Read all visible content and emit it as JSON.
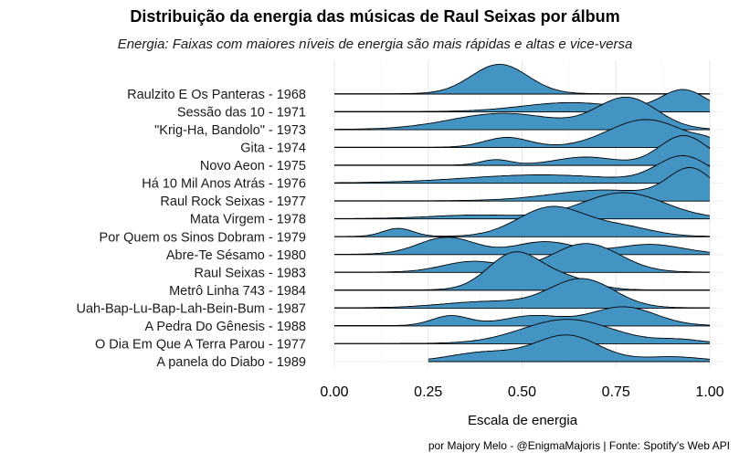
{
  "chart_data": {
    "type": "ridgeline",
    "title": "Distribuição da energia das músicas de Raul Seixas por álbum",
    "subtitle": "Energia: Faixas com maiores níveis de energia são mais rápidas e altas e vice-versa",
    "xlabel": "Escala de energia",
    "xlim": [
      0,
      1
    ],
    "x_ticks": [
      "0.00",
      "0.25",
      "0.50",
      "0.75",
      "1.00"
    ],
    "x_tick_values": [
      0,
      0.25,
      0.5,
      0.75,
      1
    ],
    "grid": true,
    "fill_color": "#4393C3",
    "series": [
      {
        "name": "Raulzito E Os Panteras - 1968",
        "peaks": [
          {
            "mu": 0.44,
            "sd": 0.075,
            "h": 1.65
          }
        ],
        "range": [
          0.0,
          1.0
        ]
      },
      {
        "name": "Sessão das 10 - 1971",
        "peaks": [
          {
            "mu": 0.63,
            "sd": 0.13,
            "h": 0.5
          },
          {
            "mu": 0.93,
            "sd": 0.06,
            "h": 1.2
          }
        ],
        "range": [
          0.0,
          1.0
        ]
      },
      {
        "name": "\"Krig-Ha, Bandolo\" - 1973",
        "peaks": [
          {
            "mu": 0.45,
            "sd": 0.14,
            "h": 0.9
          },
          {
            "mu": 0.78,
            "sd": 0.08,
            "h": 1.75
          }
        ],
        "range": [
          0.0,
          1.0
        ]
      },
      {
        "name": "Gita - 1974",
        "peaks": [
          {
            "mu": 0.46,
            "sd": 0.06,
            "h": 0.55
          },
          {
            "mu": 0.83,
            "sd": 0.1,
            "h": 1.55
          },
          {
            "mu": 0.99,
            "sd": 0.03,
            "h": 0.2
          }
        ],
        "range": [
          0.0,
          1.0
        ]
      },
      {
        "name": "Novo Aeon - 1975",
        "peaks": [
          {
            "mu": 0.43,
            "sd": 0.04,
            "h": 0.3
          },
          {
            "mu": 0.67,
            "sd": 0.08,
            "h": 0.45
          },
          {
            "mu": 0.93,
            "sd": 0.065,
            "h": 1.65
          }
        ],
        "range": [
          0.0,
          1.0
        ]
      },
      {
        "name": "Há 10 Mil Anos Atrás - 1976",
        "peaks": [
          {
            "mu": 0.55,
            "sd": 0.2,
            "h": 0.45
          },
          {
            "mu": 0.93,
            "sd": 0.07,
            "h": 1.45
          }
        ],
        "range": [
          0.0,
          1.0
        ]
      },
      {
        "name": "Raul Rock Seixas - 1977",
        "peaks": [
          {
            "mu": 0.72,
            "sd": 0.14,
            "h": 0.6
          },
          {
            "mu": 0.95,
            "sd": 0.06,
            "h": 1.7
          }
        ],
        "range": [
          0.0,
          1.0
        ]
      },
      {
        "name": "Mata Virgem - 1978",
        "peaks": [
          {
            "mu": 0.38,
            "sd": 0.12,
            "h": 0.2
          },
          {
            "mu": 0.77,
            "sd": 0.11,
            "h": 1.45
          }
        ],
        "range": [
          0.0,
          1.0
        ]
      },
      {
        "name": "Por Quem os Sinos Dobram - 1979",
        "peaks": [
          {
            "mu": 0.17,
            "sd": 0.04,
            "h": 0.45
          },
          {
            "mu": 0.58,
            "sd": 0.09,
            "h": 1.65
          },
          {
            "mu": 0.77,
            "sd": 0.08,
            "h": 0.5
          }
        ],
        "range": [
          0.0,
          1.0
        ]
      },
      {
        "name": "Abre-Te Sésamo - 1980",
        "peaks": [
          {
            "mu": 0.3,
            "sd": 0.075,
            "h": 0.95
          },
          {
            "mu": 0.56,
            "sd": 0.08,
            "h": 0.7
          },
          {
            "mu": 0.84,
            "sd": 0.09,
            "h": 0.55
          }
        ],
        "range": [
          0.0,
          1.0
        ]
      },
      {
        "name": "Raul Seixas - 1983",
        "peaks": [
          {
            "mu": 0.37,
            "sd": 0.08,
            "h": 0.6
          },
          {
            "mu": 0.67,
            "sd": 0.09,
            "h": 1.6
          }
        ],
        "range": [
          0.0,
          1.0
        ]
      },
      {
        "name": "Metrô Linha 743 - 1984",
        "peaks": [
          {
            "mu": 0.48,
            "sd": 0.07,
            "h": 2.05
          },
          {
            "mu": 0.62,
            "sd": 0.07,
            "h": 0.6
          }
        ],
        "range": [
          0.0,
          1.0
        ]
      },
      {
        "name": "Uah-Bap-Lu-Bap-Lah-Bein-Bum - 1987",
        "peaks": [
          {
            "mu": 0.41,
            "sd": 0.12,
            "h": 0.35
          },
          {
            "mu": 0.66,
            "sd": 0.085,
            "h": 1.6
          }
        ],
        "range": [
          0.0,
          1.0
        ]
      },
      {
        "name": "A Pedra Do Gênesis - 1988",
        "peaks": [
          {
            "mu": 0.31,
            "sd": 0.05,
            "h": 0.55
          },
          {
            "mu": 0.53,
            "sd": 0.08,
            "h": 0.55
          },
          {
            "mu": 0.77,
            "sd": 0.085,
            "h": 1.05
          }
        ],
        "range": [
          0.0,
          1.0
        ]
      },
      {
        "name": "O Dia Em Que A Terra Parou - 1977",
        "peaks": [
          {
            "mu": 0.62,
            "sd": 0.12,
            "h": 1.35
          },
          {
            "mu": 0.92,
            "sd": 0.06,
            "h": 0.2
          }
        ],
        "range": [
          0.0,
          1.0
        ]
      },
      {
        "name": "A panela do Diabo - 1989",
        "peaks": [
          {
            "mu": 0.4,
            "sd": 0.09,
            "h": 0.5
          },
          {
            "mu": 0.62,
            "sd": 0.085,
            "h": 1.45
          },
          {
            "mu": 0.9,
            "sd": 0.08,
            "h": 0.25
          }
        ],
        "range": [
          0.25,
          1.0
        ]
      }
    ]
  },
  "caption": "por Majory Melo - @EnigmaMajoris | Fonte: Spotify's Web API"
}
